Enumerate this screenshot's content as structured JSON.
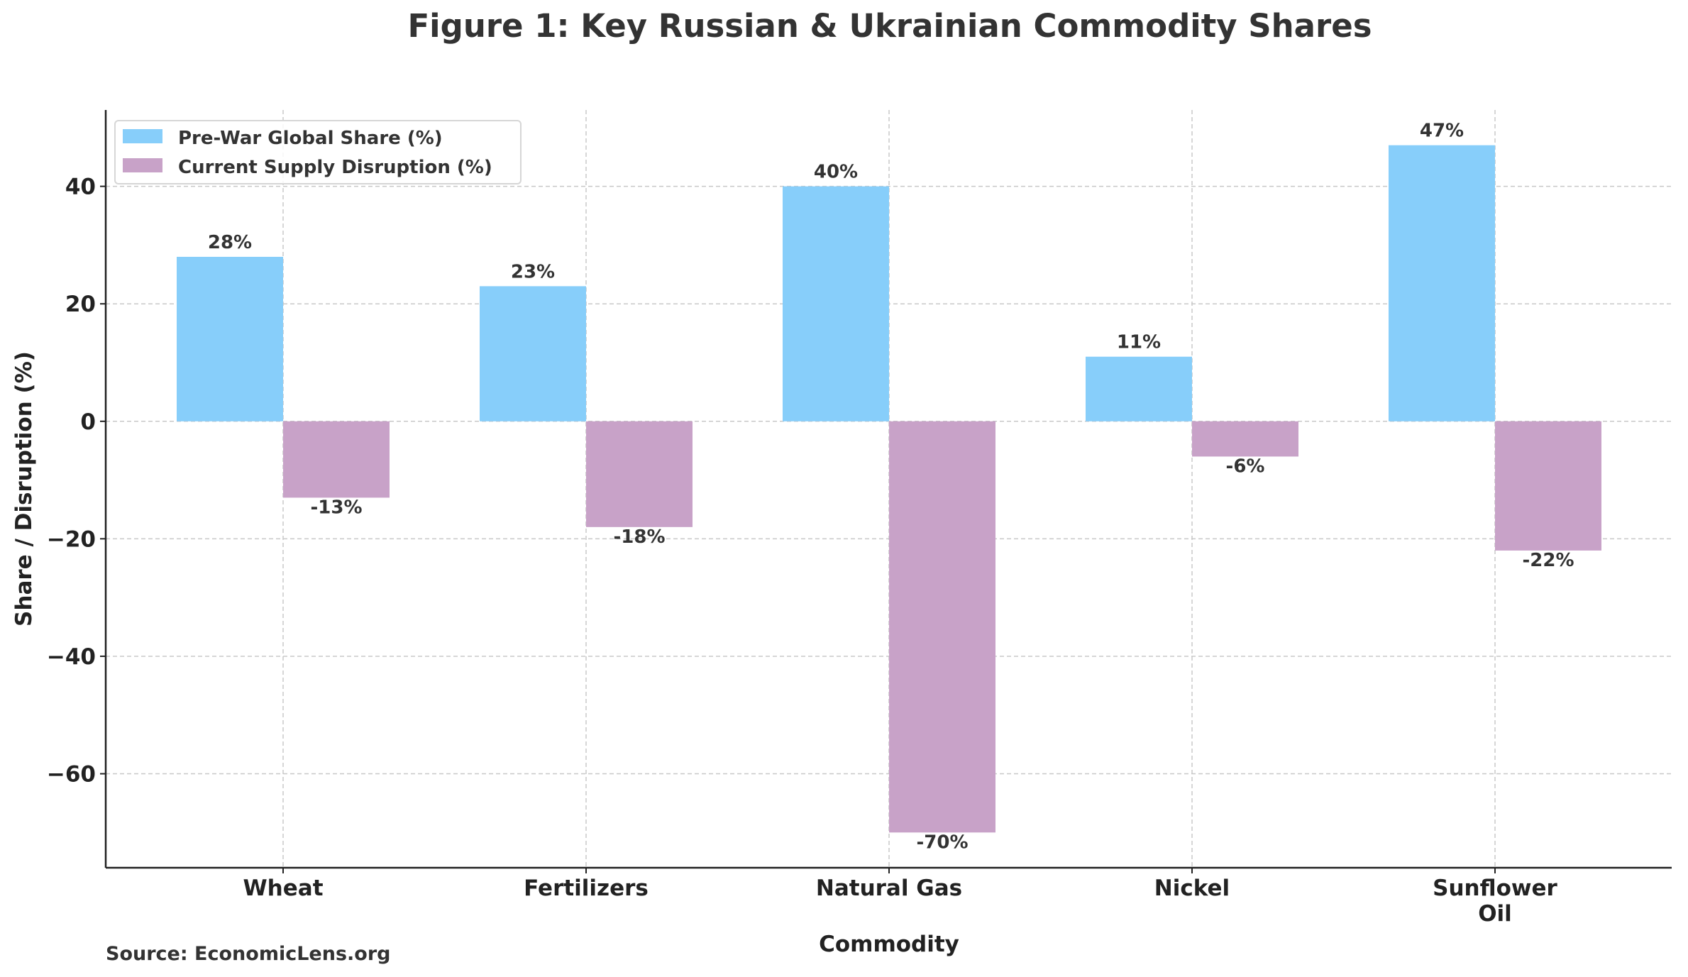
{
  "chart_data": {
    "type": "bar",
    "title": "Figure 1: Key Russian & Ukrainian Commodity Shares",
    "xlabel": "Commodity",
    "ylabel": "Share / Disruption (%)",
    "categories": [
      [
        "Wheat"
      ],
      [
        "Fertilizers"
      ],
      [
        "Natural Gas"
      ],
      [
        "Nickel"
      ],
      [
        "Sunflower",
        "Oil"
      ]
    ],
    "series": [
      {
        "name": "Pre-War Global Share (%)",
        "color": "#87CEFA",
        "values": [
          28,
          23,
          40,
          11,
          47
        ],
        "labels": [
          "28%",
          "23%",
          "40%",
          "11%",
          "47%"
        ]
      },
      {
        "name": "Current Supply Disruption (%)",
        "color": "#C8A2C8",
        "values": [
          -13,
          -18,
          -70,
          -6,
          -22
        ],
        "labels": [
          "-13%",
          "-18%",
          "-70%",
          "-6%",
          "-22%"
        ]
      }
    ],
    "ylim": [
      -76,
      53
    ],
    "yticks": [
      -60,
      -40,
      -20,
      0,
      20,
      40
    ],
    "ytick_labels": [
      "−60",
      "−40",
      "−20",
      "0",
      "20",
      "40"
    ],
    "grid": true,
    "legend_position": "top-left",
    "source": "Source: EconomicLens.org"
  }
}
